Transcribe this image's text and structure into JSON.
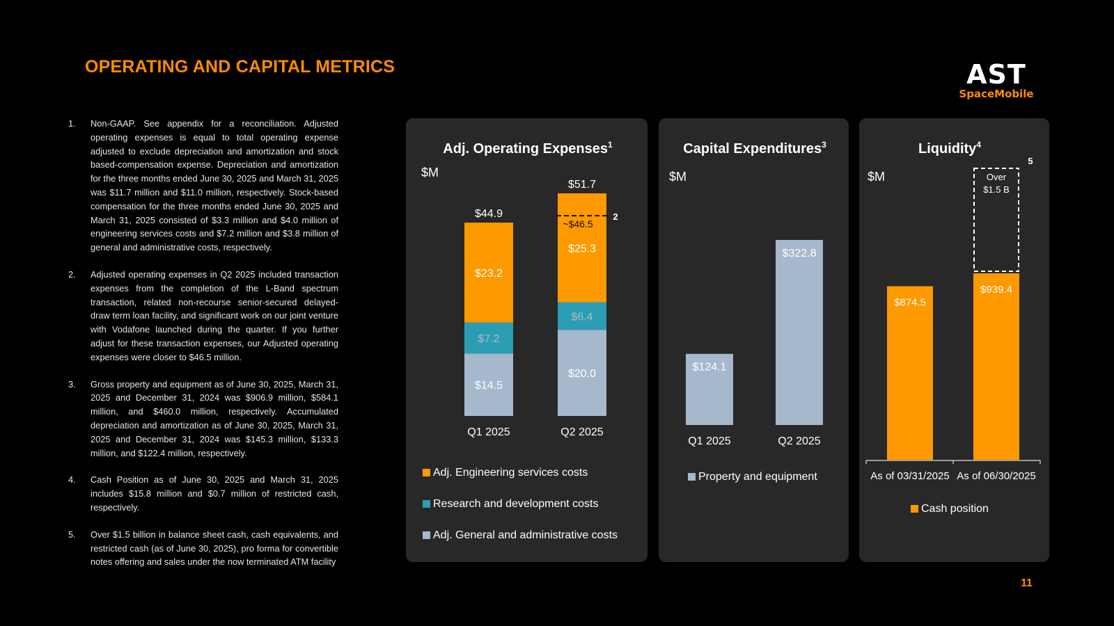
{
  "title": "OPERATING AND CAPITAL METRICS",
  "logo": {
    "main": "AST",
    "sub": "SpaceMobile"
  },
  "page_number": "11",
  "colors": {
    "orange": "#ff9900",
    "teal": "#2a9db5",
    "gray": "#a6b8cc",
    "title": "#ff8c00"
  },
  "footnotes": [
    {
      "num": "1.",
      "text": "Non-GAAP. See appendix for a reconciliation. Adjusted operating expenses is equal to total operating expense adjusted to exclude depreciation and amortization and stock based-compensation expense. Depreciation and amortization for the three months ended June 30, 2025 and March 31, 2025 was $11.7 million and $11.0 million, respectively. Stock-based compensation for the three months ended June 30, 2025 and March 31, 2025 consisted of $3.3 million and $4.0 million of engineering services costs and $7.2 million and $3.8 million of general and administrative costs, respectively."
    },
    {
      "num": "2.",
      "text": "Adjusted operating expenses in Q2 2025 included transaction expenses from the completion of the L-Band spectrum transaction, related non-recourse senior-secured delayed-draw term loan facility, and significant work on our joint venture with Vodafone launched during the quarter. If you further adjust for these transaction expenses, our Adjusted operating expenses were closer to $46.5 million."
    },
    {
      "num": "3.",
      "text": "Gross property and equipment as of June 30, 2025, March 31, 2025 and December 31, 2024 was $906.9 million, $584.1 million, and $460.0 million, respectively. Accumulated depreciation and amortization as of June 30, 2025, March 31, 2025 and December 31, 2024 was $145.3 million, $133.3 million, and $122.4 million, respectively."
    },
    {
      "num": "4.",
      "text": "Cash Position as of June 30, 2025 and March 31, 2025 includes $15.8 million and $0.7 million of restricted cash, respectively."
    },
    {
      "num": "5.",
      "text": "Over $1.5 billion in balance sheet cash, cash equivalents, and restricted cash (as of June 30, 2025), pro forma for convertible notes offering and sales under the now terminated ATM facility"
    }
  ],
  "chart_data": [
    {
      "type": "bar",
      "stacked": true,
      "title": "Adj. Operating Expenses",
      "title_sup": "1",
      "unit_label": "$M",
      "categories": [
        "Q1 2025",
        "Q2 2025"
      ],
      "series": [
        {
          "name": "Adj. General and administrative costs",
          "color": "#a6b8cc",
          "values": [
            14.5,
            20.0
          ],
          "labels": [
            "$14.5",
            "$20.0"
          ]
        },
        {
          "name": "Research and development costs",
          "color": "#2a9db5",
          "values": [
            7.2,
            6.4
          ],
          "labels": [
            "$7.2",
            "$6.4"
          ]
        },
        {
          "name": "Adj. Engineering services costs",
          "color": "#ff9900",
          "values": [
            23.2,
            25.3
          ],
          "labels": [
            "$23.2",
            "$25.3"
          ]
        }
      ],
      "totals": [
        44.9,
        51.7
      ],
      "total_labels": [
        "$44.9",
        "$51.7"
      ],
      "legend_order": [
        "Adj. Engineering services costs",
        "Research and development costs",
        "Adj. General and administrative costs"
      ],
      "annotation": {
        "category": "Q2 2025",
        "value": 46.5,
        "label": "~$46.5",
        "footnote": "2"
      }
    },
    {
      "type": "bar",
      "title": "Capital Expenditures",
      "title_sup": "3",
      "unit_label": "$M",
      "categories": [
        "Q1 2025",
        "Q2 2025"
      ],
      "series": [
        {
          "name": "Property and equipment",
          "color": "#a6b8cc",
          "values": [
            124.1,
            322.8
          ],
          "labels": [
            "$124.1",
            "$322.8"
          ]
        }
      ]
    },
    {
      "type": "bar",
      "title": "Liquidity",
      "title_sup": "4",
      "unit_label": "$M",
      "categories": [
        "As of 03/31/2025",
        "As of 06/30/2025"
      ],
      "series": [
        {
          "name": "Cash position",
          "color": "#ff9900",
          "values": [
            874.5,
            939.4
          ],
          "labels": [
            "$874.5",
            "$939.4"
          ]
        }
      ],
      "pro_forma": {
        "category": "As of 06/30/2025",
        "value": 1500,
        "label_lines": [
          "Over",
          "$1.5 B"
        ],
        "footnote": "5"
      }
    }
  ]
}
